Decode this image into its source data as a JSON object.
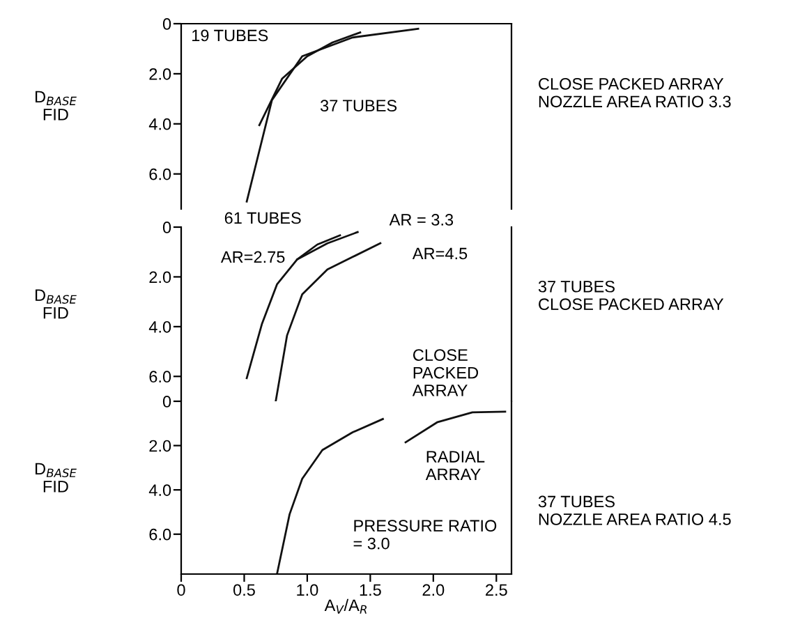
{
  "chart_data": [
    {
      "type": "line",
      "ylabel": "D$_{BASE}$\nFID",
      "ylim": [
        7.4,
        0
      ],
      "yticks": [
        0,
        {
          "value": 2,
          "label": "2.0"
        },
        {
          "value": 4,
          "label": "4.0"
        },
        {
          "value": 6,
          "label": "6.0"
        }
      ],
      "xlim": [
        0,
        2.62
      ],
      "tick_labels": "y",
      "grid": false,
      "legend": false,
      "series": [
        {
          "color": "#111111",
          "x": [
            0.52,
            0.72,
            0.96,
            1.36,
            1.88
          ],
          "values": [
            7.1,
            3.05,
            1.3,
            0.55,
            0.2
          ]
        },
        {
          "color": "#111111",
          "x": [
            0.62,
            0.8,
            1.0,
            1.2,
            1.42
          ],
          "values": [
            4.05,
            2.2,
            1.3,
            0.75,
            0.35
          ]
        }
      ],
      "annotations": [
        "19 TUBES",
        "37 TUBES",
        "CLOSE PACKED ARRAY\nNOZZLE AREA RATIO 3.3"
      ]
    },
    {
      "type": "line",
      "ylabel": "D$_{BASE}$\nFID",
      "ylim": [
        7.0,
        0
      ],
      "yticks": [
        0,
        {
          "value": 2,
          "label": "2.0"
        },
        {
          "value": 4,
          "label": "4.0"
        },
        {
          "value": 6,
          "label": "6.0"
        }
      ],
      "xlim": [
        0,
        2.62
      ],
      "tick_labels": "y",
      "grid": false,
      "legend": false,
      "series": [
        {
          "color": "#111111",
          "x": [
            0.52,
            0.64,
            0.76,
            0.92,
            1.08,
            1.26
          ],
          "values": [
            6.07,
            3.9,
            2.3,
            1.3,
            0.7,
            0.33
          ]
        },
        {
          "color": "#111111",
          "x": [
            0.92,
            1.16,
            1.4
          ],
          "values": [
            1.3,
            0.65,
            0.2
          ]
        },
        {
          "color": "#111111",
          "x": [
            0.75,
            0.84,
            0.96,
            1.16,
            1.36,
            1.58
          ],
          "values": [
            7.0,
            4.35,
            2.7,
            1.7,
            1.2,
            0.65
          ]
        }
      ],
      "annotations": [
        "61 TUBES",
        "AR=2.75",
        "AR = 3.3",
        "AR=4.5",
        "CLOSE\nPACKED\nARRAY",
        "37 TUBES\nCLOSE PACKED ARRAY"
      ]
    },
    {
      "type": "line",
      "ylabel": "D$_{BASE}$\nFID",
      "xlabel": "A$_{V}$/A$_{R}$",
      "ylim": [
        7.8,
        0
      ],
      "yticks": [
        0,
        {
          "value": 2,
          "label": "2.0"
        },
        {
          "value": 4,
          "label": "4.0"
        },
        {
          "value": 6,
          "label": "6.0"
        }
      ],
      "xlim": [
        0,
        2.62
      ],
      "xticks": [
        0,
        0.5,
        {
          "value": 1,
          "label": "1.0"
        },
        1.5,
        {
          "value": 2,
          "label": "2.0"
        },
        2.5
      ],
      "grid": false,
      "legend": false,
      "series": [
        {
          "color": "#111111",
          "x": [
            0.76,
            0.86,
            0.96,
            1.12,
            1.36,
            1.6
          ],
          "values": [
            7.8,
            5.1,
            3.5,
            2.2,
            1.4,
            0.8
          ]
        },
        {
          "color": "#111111",
          "x": [
            1.78,
            2.03,
            2.31,
            2.57
          ],
          "values": [
            1.85,
            0.95,
            0.5,
            0.47
          ]
        }
      ],
      "annotations": [
        "RADIAL\nARRAY",
        "PRESSURE RATIO\n= 3.0",
        "37 TUBES\nNOZZLE AREA RATIO 4.5"
      ]
    }
  ]
}
